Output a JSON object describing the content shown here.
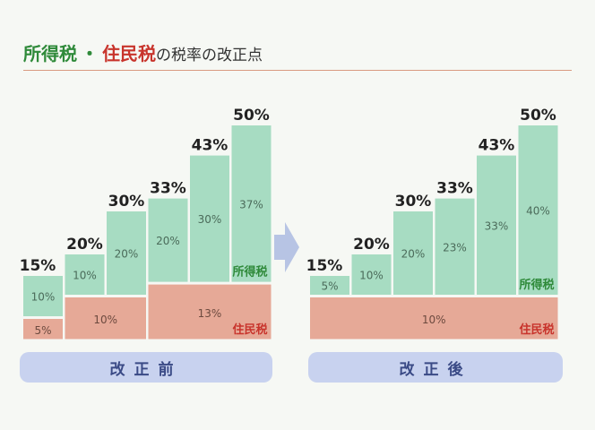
{
  "title": {
    "part1": "所得税",
    "separator": "・",
    "part2": "住民税",
    "part3": "の税率の改正点"
  },
  "colors": {
    "income_tax": "#a7dcc2",
    "resident_tax": "#e6a997",
    "income_label": "#2f8a3a",
    "resident_label": "#c8342c",
    "pill": "#c8d2ef"
  },
  "chart_data": [
    {
      "type": "bar",
      "stacked": true,
      "pill_label": "改正前",
      "series_labels": {
        "income": "所得税",
        "resident": "住民税"
      },
      "totals": [
        "15%",
        "20%",
        "30%",
        "33%",
        "43%",
        "50%"
      ],
      "total_values": [
        15,
        20,
        30,
        33,
        43,
        50
      ],
      "income_labels": [
        "10%",
        "10%",
        "20%",
        "20%",
        "30%",
        "37%"
      ],
      "income_values": [
        10,
        10,
        20,
        20,
        30,
        37
      ],
      "resident_groups": [
        {
          "from": 0,
          "to": 0,
          "value": 5,
          "label": "5%"
        },
        {
          "from": 1,
          "to": 2,
          "value": 10,
          "label": "10%"
        },
        {
          "from": 3,
          "to": 5,
          "value": 13,
          "label": "13%"
        }
      ]
    },
    {
      "type": "bar",
      "stacked": true,
      "pill_label": "改正後",
      "series_labels": {
        "income": "所得税",
        "resident": "住民税"
      },
      "totals": [
        "15%",
        "20%",
        "30%",
        "33%",
        "43%",
        "50%"
      ],
      "total_values": [
        15,
        20,
        30,
        33,
        43,
        50
      ],
      "income_labels": [
        "5%",
        "10%",
        "20%",
        "23%",
        "33%",
        "40%"
      ],
      "income_values": [
        5,
        10,
        20,
        23,
        33,
        40
      ],
      "resident_groups": [
        {
          "from": 0,
          "to": 5,
          "value": 10,
          "label": "10%"
        }
      ]
    }
  ]
}
